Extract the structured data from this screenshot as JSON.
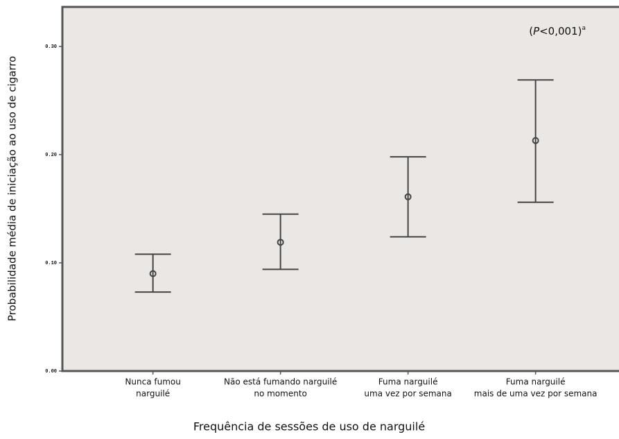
{
  "chart_data": {
    "type": "errorbar",
    "y_label": "Probabilidade média de iniciação ao uso de cigarro",
    "x_label": "Frequência de sessões de uso de narguilé",
    "annotation": [
      "(",
      "P",
      "<0,001)",
      "a"
    ],
    "categories": [
      [
        "Nunca fumou",
        "narguilé"
      ],
      [
        "Não está fumando narguilé",
        "no momento"
      ],
      [
        "Fuma narguilé",
        "uma vez por semana"
      ],
      [
        "Fuma narguilé",
        "mais de uma vez por semana"
      ]
    ],
    "series": [
      {
        "color": "#444444",
        "values": [
          0.09,
          0.119,
          0.161,
          0.213
        ],
        "lower": [
          0.073,
          0.094,
          0.124,
          0.156
        ],
        "upper": [
          0.108,
          0.145,
          0.198,
          0.269
        ]
      }
    ],
    "ylim": [
      0,
      0.3365
    ],
    "yticks": [
      {
        "value": 0,
        "label": "0.00"
      },
      {
        "value": 0.1,
        "label": "0.10"
      },
      {
        "value": 0.2,
        "label": "0.20"
      },
      {
        "value": 0.3,
        "label": "0.30"
      }
    ],
    "background": "#ebe7e4"
  }
}
